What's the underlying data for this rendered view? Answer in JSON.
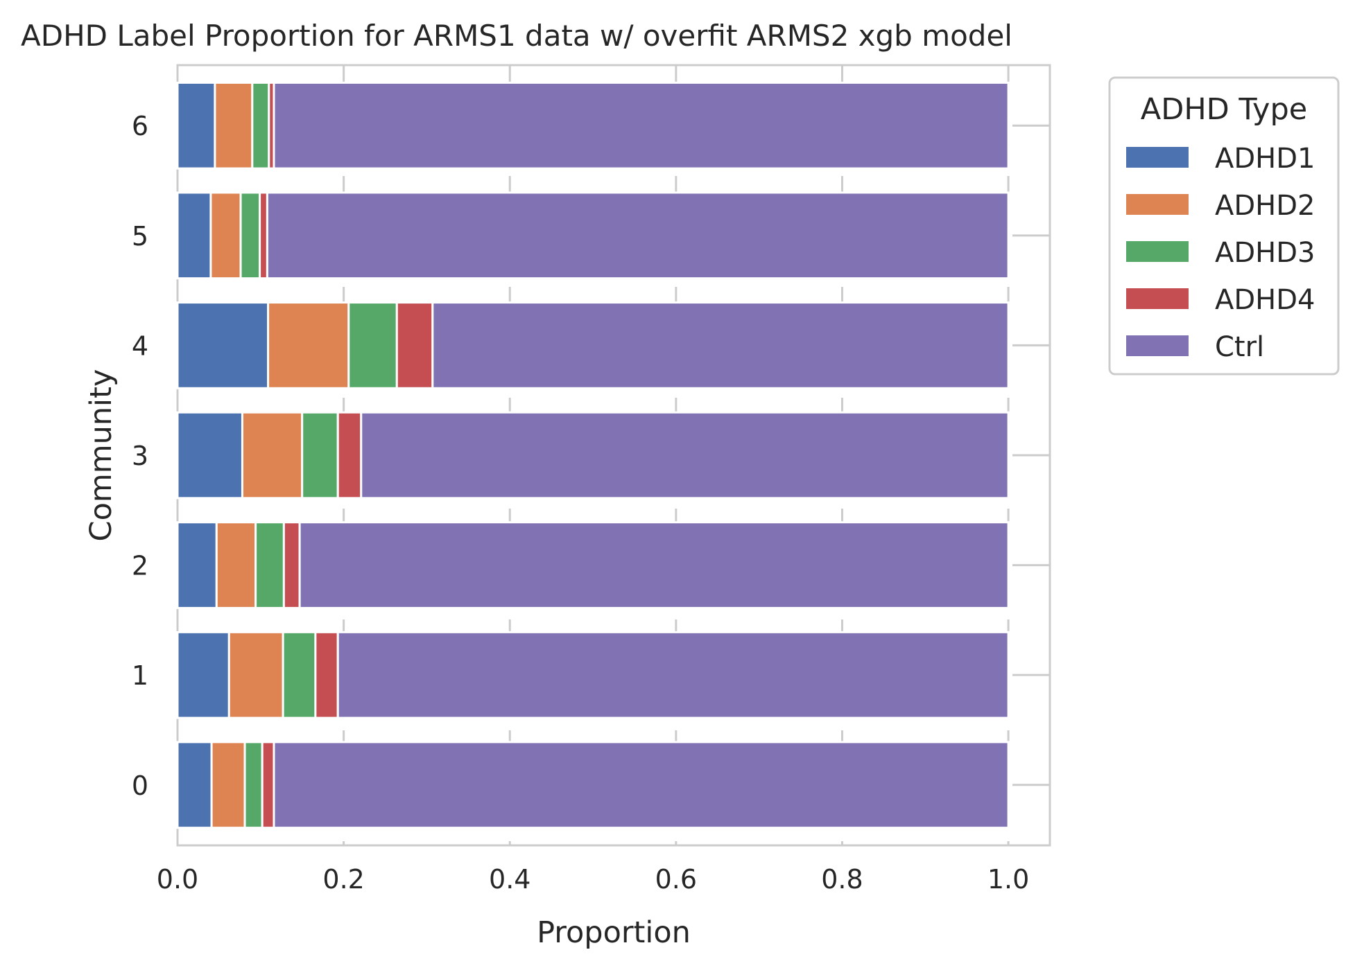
{
  "chart_data": {
    "type": "bar",
    "orientation": "horizontal",
    "stacked": true,
    "title": "ADHD Label Proportion for ARMS1 data w/ overfit ARMS2 xgb model",
    "xlabel": "Proportion",
    "ylabel": "Community",
    "xlim": [
      0,
      1.05
    ],
    "xticks": [
      "0.0",
      "0.2",
      "0.4",
      "0.6",
      "0.8",
      "1.0"
    ],
    "categories": [
      "0",
      "1",
      "2",
      "3",
      "4",
      "5",
      "6"
    ],
    "grid": true,
    "legend_title": "ADHD Type",
    "legend_position": "outside-top-right",
    "series": [
      {
        "name": "ADHD1",
        "color": "#4c72b0",
        "values": [
          0.041,
          0.062,
          0.047,
          0.078,
          0.109,
          0.04,
          0.045
        ]
      },
      {
        "name": "ADHD2",
        "color": "#dd8452",
        "values": [
          0.04,
          0.065,
          0.047,
          0.072,
          0.097,
          0.036,
          0.045
        ]
      },
      {
        "name": "ADHD3",
        "color": "#55a868",
        "values": [
          0.021,
          0.039,
          0.034,
          0.043,
          0.058,
          0.023,
          0.02
        ]
      },
      {
        "name": "ADHD4",
        "color": "#c44e52",
        "values": [
          0.014,
          0.027,
          0.019,
          0.028,
          0.043,
          0.009,
          0.006
        ]
      },
      {
        "name": "Ctrl",
        "color": "#8172b3",
        "values": [
          0.884,
          0.807,
          0.853,
          0.779,
          0.693,
          0.892,
          0.884
        ]
      }
    ]
  }
}
